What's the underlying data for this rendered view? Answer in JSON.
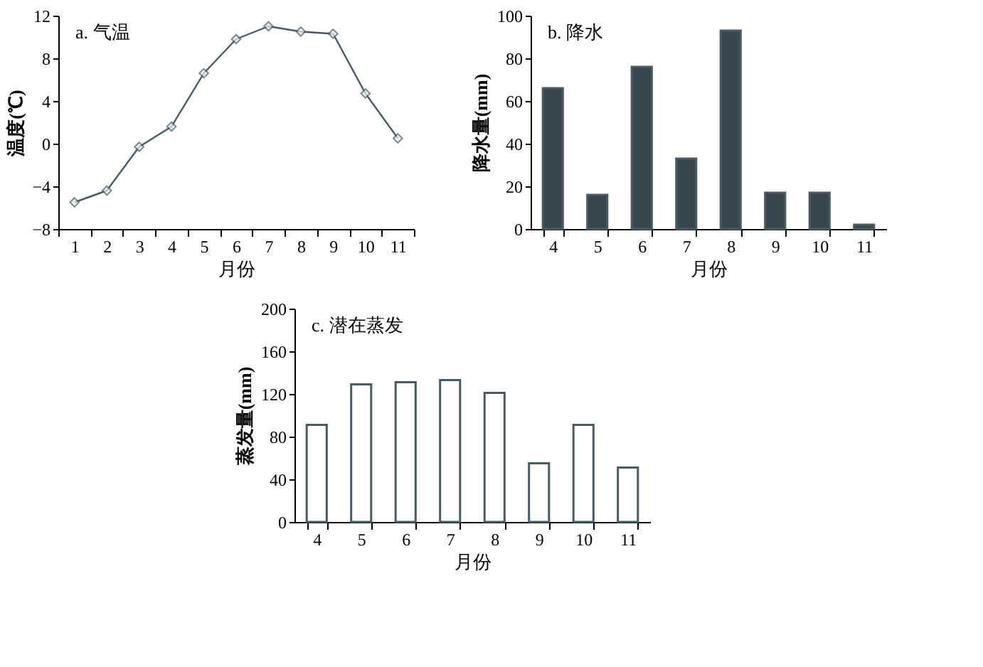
{
  "chart_data": [
    {
      "type": "line",
      "title": "a. 气温",
      "xlabel": "月份",
      "ylabel": "温度(℃)",
      "categories": [
        "1",
        "2",
        "3",
        "4",
        "5",
        "6",
        "7",
        "8",
        "9",
        "10",
        "11"
      ],
      "series": [
        {
          "color": "#4a5a62",
          "values": [
            -5.5,
            -4.4,
            -0.3,
            1.6,
            6.6,
            9.8,
            11.0,
            10.5,
            10.3,
            4.7,
            0.5
          ]
        }
      ],
      "ylim": [
        -8,
        12
      ],
      "yticks": [
        -8,
        -4,
        0,
        4,
        8,
        12
      ],
      "marker": "diamond",
      "line_style": "solid",
      "grid": false,
      "legend": false
    },
    {
      "type": "bar",
      "title": "b. 降水",
      "xlabel": "月份",
      "ylabel": "降水量(mm)",
      "categories": [
        "4",
        "5",
        "6",
        "7",
        "8",
        "9",
        "10",
        "11"
      ],
      "series": [
        {
          "color": "#37474f",
          "values": [
            66,
            16,
            76,
            33,
            93,
            17,
            17,
            2
          ]
        }
      ],
      "ylim": [
        0,
        100
      ],
      "yticks": [
        0,
        20,
        40,
        60,
        80,
        100
      ],
      "grid": false,
      "legend": false
    },
    {
      "type": "bar",
      "title": "c. 潜在蒸发",
      "xlabel": "月份",
      "ylabel": "蒸发量(mm)",
      "categories": [
        "4",
        "5",
        "6",
        "7",
        "8",
        "9",
        "10",
        "11"
      ],
      "series": [
        {
          "color": "#ffffff",
          "values": [
            91,
            129,
            131,
            133,
            121,
            55,
            91,
            51
          ]
        }
      ],
      "ylim": [
        0,
        200
      ],
      "yticks": [
        0,
        40,
        80,
        120,
        160,
        200
      ],
      "grid": false,
      "legend": false
    }
  ]
}
